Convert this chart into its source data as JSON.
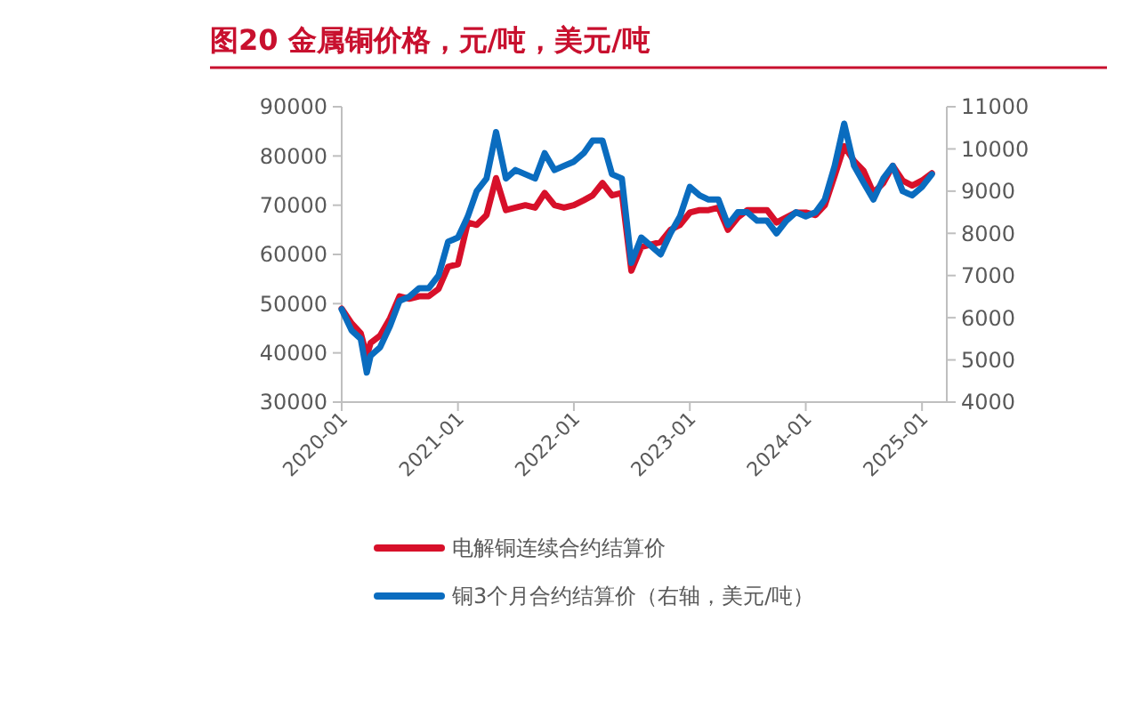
{
  "chart_data": {
    "type": "line",
    "title": "图20  金属铜价格，元/吨，美元/吨",
    "x": [
      "2020-01",
      "2020-02",
      "2020-03",
      "2020-03-20",
      "2020-04",
      "2020-05",
      "2020-06",
      "2020-07",
      "2020-08",
      "2020-09",
      "2020-10",
      "2020-11",
      "2020-12",
      "2021-01",
      "2021-02",
      "2021-03",
      "2021-04",
      "2021-05",
      "2021-06",
      "2021-07",
      "2021-08",
      "2021-09",
      "2021-10",
      "2021-11",
      "2021-12",
      "2022-01",
      "2022-02",
      "2022-03",
      "2022-04",
      "2022-05",
      "2022-06",
      "2022-07",
      "2022-08",
      "2022-09",
      "2022-10",
      "2022-11",
      "2022-12",
      "2023-01",
      "2023-02",
      "2023-03",
      "2023-04",
      "2023-05",
      "2023-06",
      "2023-07",
      "2023-08",
      "2023-09",
      "2023-10",
      "2023-11",
      "2023-12",
      "2024-01",
      "2024-02",
      "2024-03",
      "2024-04",
      "2024-05",
      "2024-06",
      "2024-07",
      "2024-08",
      "2024-09",
      "2024-10",
      "2024-11",
      "2024-12",
      "2025-01",
      "2025-02"
    ],
    "series": [
      {
        "name": "电解铜连续合约结算价",
        "color": "#d7102a",
        "values": [
          49000,
          46000,
          44000,
          39400,
          42000,
          43500,
          47000,
          51500,
          51000,
          51500,
          51500,
          53000,
          57500,
          58000,
          66500,
          66000,
          68000,
          75500,
          69000,
          69500,
          70000,
          69500,
          72500,
          70000,
          69500,
          70000,
          71000,
          72000,
          74500,
          72000,
          72500,
          56700,
          61500,
          62000,
          62500,
          65000,
          66000,
          68500,
          69000,
          69000,
          69500,
          65000,
          67500,
          69000,
          69000,
          69000,
          66500,
          67500,
          68500,
          68500,
          68000,
          70000,
          76000,
          82000,
          79000,
          77000,
          72500,
          74500,
          78000,
          75000,
          74000,
          75000,
          76500
        ]
      },
      {
        "name": "铜3个月合约结算价（右轴，美元/吨）",
        "color": "#0a6cbf",
        "axis": "y2",
        "values": [
          6200,
          5700,
          5500,
          4700,
          5100,
          5300,
          5800,
          6400,
          6500,
          6700,
          6700,
          7000,
          7800,
          7900,
          8400,
          9000,
          9300,
          10400,
          9300,
          9500,
          9400,
          9300,
          9900,
          9500,
          9600,
          9700,
          9900,
          10200,
          10200,
          9400,
          9300,
          7300,
          7900,
          7700,
          7500,
          8000,
          8400,
          9100,
          8900,
          8800,
          8800,
          8200,
          8500,
          8500,
          8300,
          8300,
          8000,
          8300,
          8500,
          8400,
          8500,
          8800,
          9600,
          10600,
          9600,
          9200,
          8800,
          9300,
          9600,
          9000,
          8900,
          9100,
          9400
        ]
      }
    ],
    "xlim": [
      "2020-01-01",
      "2025-03-20"
    ],
    "xticks": [
      "2020-01",
      "2021-01",
      "2022-01",
      "2023-01",
      "2024-01",
      "2025-01"
    ],
    "ylim": [
      30000,
      90000
    ],
    "yticks": [
      30000,
      40000,
      50000,
      60000,
      70000,
      80000,
      90000
    ],
    "y2lim": [
      4000,
      11000
    ],
    "y2ticks": [
      4000,
      5000,
      6000,
      7000,
      8000,
      9000,
      10000,
      11000
    ],
    "grid": false,
    "legend": "bottom",
    "line_style": "solid",
    "marker": "none"
  }
}
